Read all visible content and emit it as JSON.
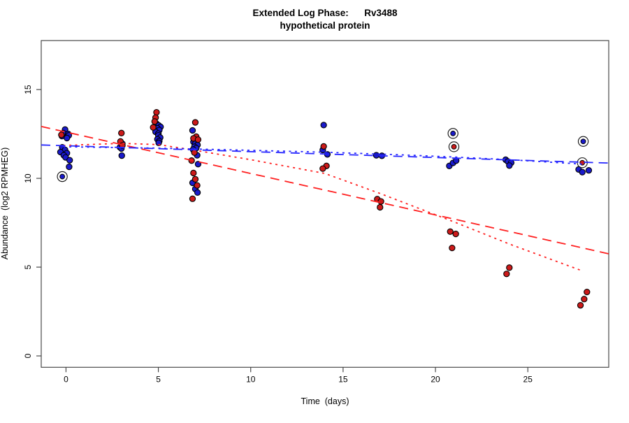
{
  "chart_data": {
    "type": "scatter",
    "title_line1": "Extended Log Phase:      Rv3488",
    "title_line2": "hypothetical protein",
    "xlabel": "Time  (days)",
    "ylabel": "Abundance  (log2 RPMHEG)",
    "x_ticks": [
      0,
      5,
      10,
      15,
      20,
      25
    ],
    "y_ticks": [
      0,
      5,
      10,
      15
    ],
    "xlim": [
      -1.34,
      29.38
    ],
    "ylim": [
      -0.64,
      17.76
    ],
    "grid": false,
    "legend": "none",
    "colors": {
      "blue_points": "#1a1acc",
      "red_points": "#cc1a1a",
      "blue_line": "#2626ff",
      "red_line": "#ff1f1f",
      "point_outline": "#000000",
      "circle_marker": "#111111",
      "axis": "#3a3a3a"
    },
    "series": [
      {
        "name": "blue-replicates",
        "marker": "filled-circle",
        "color_key": "blue_points",
        "points": [
          [
            -0.05,
            12.75
          ],
          [
            -0.15,
            12.55
          ],
          [
            0.12,
            12.5
          ],
          [
            -0.22,
            12.38
          ],
          [
            0.15,
            12.42
          ],
          [
            0.05,
            12.27
          ],
          [
            -0.2,
            11.75
          ],
          [
            -0.05,
            11.6
          ],
          [
            -0.3,
            11.48
          ],
          [
            0.05,
            11.42
          ],
          [
            -0.12,
            11.3
          ],
          [
            -0.02,
            11.18
          ],
          [
            0.2,
            11.02
          ],
          [
            0.17,
            10.65
          ],
          [
            3.05,
            11.95
          ],
          [
            2.92,
            11.75
          ],
          [
            3.0,
            11.68
          ],
          [
            3.02,
            11.28
          ],
          [
            4.9,
            13.08
          ],
          [
            5.02,
            12.98
          ],
          [
            5.12,
            12.9
          ],
          [
            4.95,
            12.82
          ],
          [
            5.05,
            12.72
          ],
          [
            4.85,
            12.62
          ],
          [
            5.0,
            12.52
          ],
          [
            5.0,
            12.42
          ],
          [
            5.1,
            12.3
          ],
          [
            4.95,
            12.2
          ],
          [
            5.05,
            12.1
          ],
          [
            5.02,
            12.0
          ],
          [
            6.85,
            12.7
          ],
          [
            6.9,
            12.05
          ],
          [
            7.0,
            11.95
          ],
          [
            7.12,
            11.88
          ],
          [
            6.95,
            11.78
          ],
          [
            7.05,
            11.7
          ],
          [
            6.88,
            11.62
          ],
          [
            7.1,
            11.3
          ],
          [
            7.15,
            10.8
          ],
          [
            6.85,
            9.75
          ],
          [
            7.0,
            9.4
          ],
          [
            7.12,
            9.2
          ],
          [
            13.95,
            13.0
          ],
          [
            13.9,
            11.6
          ],
          [
            14.15,
            11.35
          ],
          [
            16.8,
            11.3
          ],
          [
            17.1,
            11.27
          ],
          [
            20.75,
            10.7
          ],
          [
            20.95,
            10.87
          ],
          [
            21.12,
            11.0
          ],
          [
            23.8,
            11.05
          ],
          [
            23.92,
            10.95
          ],
          [
            24.1,
            10.88
          ],
          [
            24.0,
            10.72
          ],
          [
            27.75,
            10.5
          ],
          [
            27.95,
            10.35
          ],
          [
            28.3,
            10.45
          ]
        ]
      },
      {
        "name": "red-replicates",
        "marker": "filled-circle",
        "color_key": "red_points",
        "points": [
          [
            -0.25,
            12.45
          ],
          [
            3.0,
            12.55
          ],
          [
            2.95,
            12.08
          ],
          [
            3.05,
            11.85
          ],
          [
            4.9,
            13.72
          ],
          [
            4.85,
            13.42
          ],
          [
            4.8,
            13.2
          ],
          [
            4.72,
            12.87
          ],
          [
            7.0,
            13.15
          ],
          [
            7.05,
            12.35
          ],
          [
            6.9,
            12.25
          ],
          [
            7.15,
            12.18
          ],
          [
            6.95,
            11.45
          ],
          [
            6.8,
            11.0
          ],
          [
            6.9,
            10.3
          ],
          [
            7.0,
            9.95
          ],
          [
            7.1,
            9.6
          ],
          [
            6.85,
            8.85
          ],
          [
            13.95,
            11.8
          ],
          [
            14.1,
            10.7
          ],
          [
            13.9,
            10.55
          ],
          [
            16.85,
            8.83
          ],
          [
            17.05,
            8.7
          ],
          [
            17.0,
            8.37
          ],
          [
            20.8,
            7.0
          ],
          [
            21.1,
            6.87
          ],
          [
            20.9,
            6.08
          ],
          [
            24.0,
            4.97
          ],
          [
            23.85,
            4.62
          ],
          [
            28.2,
            3.6
          ],
          [
            28.05,
            3.2
          ],
          [
            27.85,
            2.85
          ]
        ]
      },
      {
        "name": "flagged-blue",
        "marker": "circled-point",
        "color_key": "blue_points",
        "points": [
          [
            -0.2,
            10.1
          ],
          [
            20.95,
            12.53
          ],
          [
            28.0,
            12.08
          ]
        ]
      },
      {
        "name": "flagged-red",
        "marker": "circled-point",
        "color_key": "red_points",
        "points": [
          [
            21.0,
            11.78
          ],
          [
            27.95,
            10.88
          ]
        ]
      }
    ],
    "fit_lines": [
      {
        "name": "red-linear-fit",
        "style": "dashed",
        "color_key": "red_line",
        "points": [
          [
            -1.34,
            12.92
          ],
          [
            29.38,
            5.75
          ]
        ]
      },
      {
        "name": "red-curve-fit",
        "style": "dotted",
        "color_key": "red_line",
        "points": [
          [
            -0.15,
            11.85
          ],
          [
            3,
            11.97
          ],
          [
            5,
            11.9
          ],
          [
            7,
            11.58
          ],
          [
            10,
            11.05
          ],
          [
            14,
            10.28
          ],
          [
            17,
            9.15
          ],
          [
            21,
            7.55
          ],
          [
            24,
            6.3
          ],
          [
            28,
            4.77
          ]
        ]
      },
      {
        "name": "blue-linear-fit",
        "style": "dashed",
        "color_key": "blue_line",
        "points": [
          [
            -1.34,
            11.88
          ],
          [
            29.38,
            10.86
          ]
        ]
      },
      {
        "name": "blue-curve-fit",
        "style": "dotted",
        "color_key": "blue_line",
        "points": [
          [
            -0.15,
            11.78
          ],
          [
            5,
            11.7
          ],
          [
            10,
            11.58
          ],
          [
            14,
            11.47
          ],
          [
            18,
            11.33
          ],
          [
            21,
            11.2
          ],
          [
            24,
            11.05
          ],
          [
            28,
            10.8
          ]
        ]
      }
    ]
  }
}
